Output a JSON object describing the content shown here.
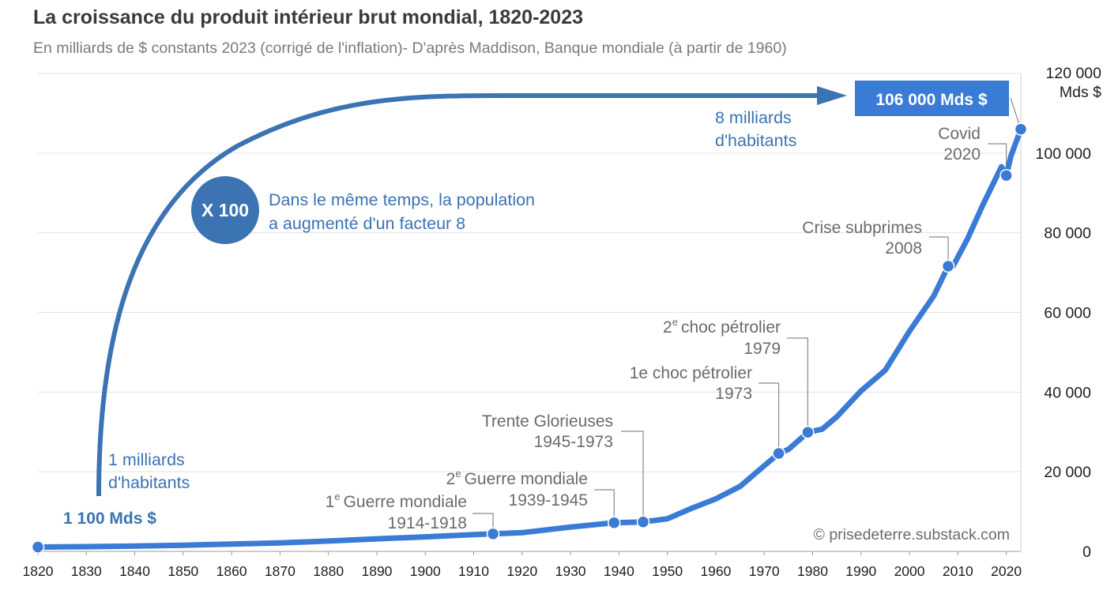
{
  "title": "La croissance du produit intérieur brut mondial, 1820-2023",
  "subtitle": "En milliards de $ constants 2023 (corrigé de l'inflation)- D'après Maddison, Banque mondiale (à partir de 1960)",
  "colors": {
    "line": "#3a7bd5",
    "accent_blue": "#3b73b3",
    "text_gray": "#6b6b6b",
    "grid": "#e3e3e3"
  },
  "chart_data": {
    "type": "line",
    "title": "La croissance du produit intérieur brut mondial, 1820-2023",
    "xlabel": "",
    "ylabel": "Mds $",
    "xlim": [
      1820,
      2023
    ],
    "ylim": [
      0,
      120000
    ],
    "x_ticks": [
      1820,
      1830,
      1840,
      1850,
      1860,
      1870,
      1880,
      1890,
      1900,
      1910,
      1920,
      1930,
      1940,
      1950,
      1960,
      1970,
      1980,
      1990,
      2000,
      2010,
      2020
    ],
    "y_ticks": [
      0,
      20000,
      40000,
      60000,
      80000,
      100000,
      120000
    ],
    "y_tick_labels": [
      "0",
      "20 000",
      "40 000",
      "60 000",
      "80 000",
      "100 000",
      "120 000"
    ],
    "y_unit": "Mds $",
    "grid": "horizontal",
    "series": [
      {
        "name": "",
        "x": [
          1820,
          1830,
          1840,
          1850,
          1860,
          1870,
          1880,
          1890,
          1900,
          1910,
          1914,
          1920,
          1930,
          1939,
          1945,
          1950,
          1955,
          1960,
          1965,
          1970,
          1973,
          1975,
          1979,
          1982,
          1985,
          1990,
          1995,
          2000,
          2005,
          2008,
          2009,
          2012,
          2015,
          2019,
          2020,
          2021,
          2023
        ],
        "values": [
          1100,
          1200,
          1350,
          1550,
          1850,
          2150,
          2600,
          3150,
          3650,
          4200,
          4400,
          4700,
          6100,
          7200,
          7400,
          8200,
          10800,
          13200,
          16300,
          21500,
          24600,
          25600,
          29900,
          30700,
          33800,
          40300,
          45500,
          55300,
          64100,
          71600,
          71600,
          78500,
          86600,
          96600,
          94400,
          99400,
          106000
        ]
      }
    ],
    "annotations": [
      {
        "x": 1820,
        "y": 1100,
        "lines": [
          "1 100 Mds $"
        ]
      },
      {
        "x": 1914,
        "y": 4400,
        "lines": [
          "1e Guerre mondiale",
          "1914-1918"
        ]
      },
      {
        "x": 1939,
        "y": 7200,
        "lines": [
          "2e Guerre mondiale",
          "1939-1945"
        ]
      },
      {
        "x": 1945,
        "y": 7400,
        "lines": [
          "Trente Glorieuses",
          "1945-1973"
        ]
      },
      {
        "x": 1973,
        "y": 24600,
        "lines": [
          "1e choc pétrolier",
          "1973"
        ]
      },
      {
        "x": 1979,
        "y": 29900,
        "lines": [
          "2e choc pétrolier",
          "1979"
        ]
      },
      {
        "x": 2008,
        "y": 71600,
        "lines": [
          "Crise subprimes",
          "2008"
        ]
      },
      {
        "x": 2020,
        "y": 94400,
        "lines": [
          "Covid",
          "2020"
        ]
      },
      {
        "x": 2023,
        "y": 106000,
        "lines": [
          "106 000 Mds $"
        ]
      }
    ]
  },
  "labels": {
    "start_value": "1 100 Mds $",
    "end_value": "106 000 Mds $",
    "multiplier": "X 100",
    "population_note_1": "Dans le même temps, la population",
    "population_note_2": "a augmenté d'un facteur 8",
    "pop_start_1": "1 milliards",
    "pop_start_2": "d'habitants",
    "pop_end_1": "8 milliards",
    "pop_end_2": "d'habitants",
    "y_unit_line1": "120 000",
    "y_unit_line2": "Mds $",
    "credit": "© prisedeterre.substack.com",
    "ww1": "Guerre mondiale",
    "ww1_ord": "1",
    "ww1_sup": "e",
    "ww1_years": "1914-1918",
    "ww2": "Guerre mondiale",
    "ww2_ord": "2",
    "ww2_sup": "e",
    "ww2_years": "1939-1945",
    "trente": "Trente Glorieuses",
    "trente_years": "1945-1973",
    "choc1": "1e choc pétrolier",
    "choc1_year": "1973",
    "choc2": "choc pétrolier",
    "choc2_ord": "2",
    "choc2_sup": "e",
    "choc2_year": "1979",
    "subprimes": "Crise subprimes",
    "subprimes_year": "2008",
    "covid": "Covid",
    "covid_year": "2020"
  }
}
